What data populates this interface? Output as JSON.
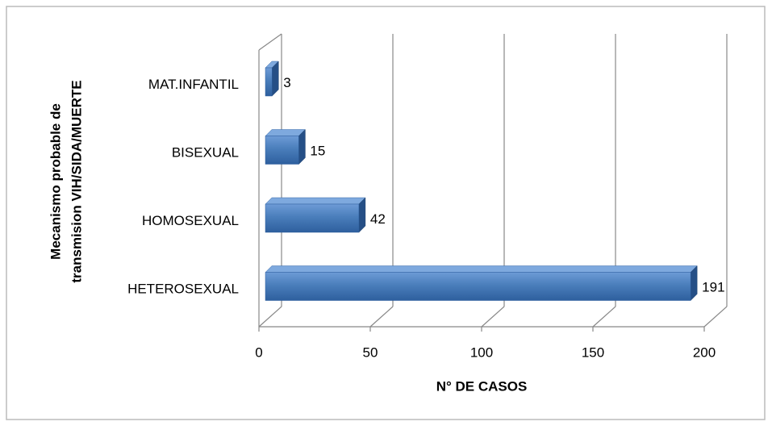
{
  "chart_data": {
    "type": "bar3d_horizontal",
    "categories": [
      "HETEROSEXUAL",
      "HOMOSEXUAL",
      "BISEXUAL",
      "MAT.INFANTIL"
    ],
    "values": [
      191,
      42,
      15,
      3
    ],
    "color": "#4a7ebb",
    "xlim": [
      0,
      200
    ],
    "xticks": [
      0,
      50,
      100,
      150,
      200
    ],
    "xlabel": "N° DE CASOS",
    "ylabel": [
      "Mecanismo probable de",
      "transmision VIH/SIDA/MUERTE"
    ],
    "grid": true
  }
}
